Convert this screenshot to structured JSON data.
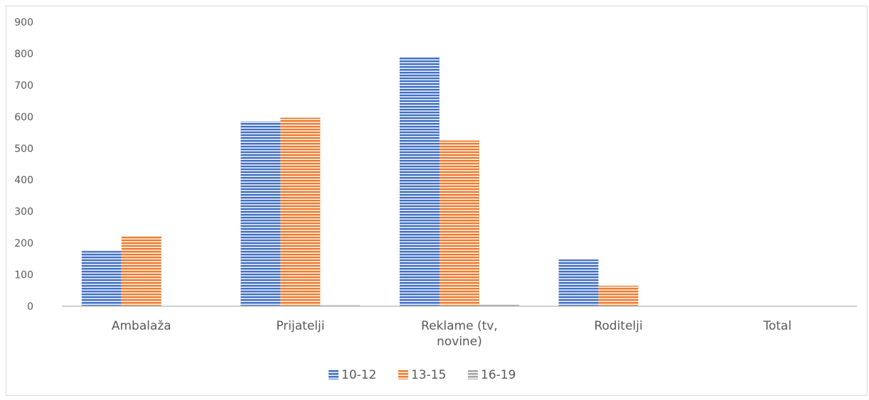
{
  "chart_data": {
    "type": "bar",
    "categories": [
      "Ambalaža",
      "Prijatelji",
      "Reklame (tv, novine)",
      "Roditelji",
      "Total"
    ],
    "category_lines": [
      [
        "Ambalaža"
      ],
      [
        "Prijatelji"
      ],
      [
        "Reklame (tv,",
        "novine)"
      ],
      [
        "Roditelji"
      ],
      [
        "Total"
      ]
    ],
    "series": [
      {
        "name": "10-12",
        "values": [
          175,
          585,
          788,
          148,
          0
        ],
        "color": "#4472c4"
      },
      {
        "name": "13-15",
        "values": [
          222,
          597,
          525,
          65,
          0
        ],
        "color": "#ed7d31"
      },
      {
        "name": "16-19",
        "values": [
          0,
          3,
          5,
          0,
          0
        ],
        "color": "#a5a5a5"
      }
    ],
    "ylim": [
      0,
      900
    ],
    "yticks": [
      0,
      100,
      200,
      300,
      400,
      500,
      600,
      700,
      800,
      900
    ],
    "ytick_labels": [
      "0",
      "100",
      "200",
      "300",
      "400",
      "500",
      "600",
      "700",
      "800",
      "900"
    ],
    "grid": false,
    "legend_position": "bottom",
    "bar_style": "horizontal-stripes"
  }
}
